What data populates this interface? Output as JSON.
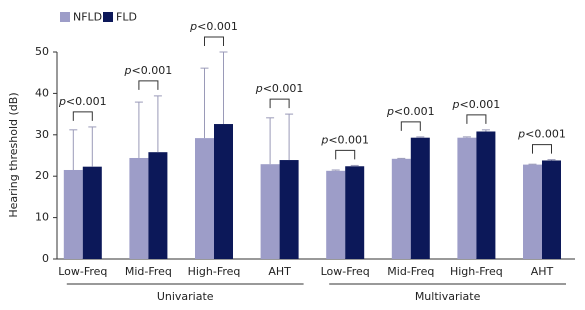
{
  "chart_data": {
    "type": "bar",
    "y_label": "Hearing threshold (dB)",
    "groups": [
      {
        "name": "Univariate",
        "categories": [
          "Low-Freq",
          "Mid-Freq",
          "High-Freq",
          "AHT"
        ]
      },
      {
        "name": "Multivariate",
        "categories": [
          "Low-Freq",
          "Mid-Freq",
          "High-Freq",
          "AHT"
        ]
      }
    ],
    "series": [
      {
        "name": "NFLD",
        "color": "#9d9dc8",
        "values": [
          21.5,
          24.4,
          29.2,
          22.9,
          21.3,
          24.2,
          29.3,
          22.8
        ],
        "errors": [
          9.7,
          13.5,
          16.9,
          11.2,
          0.2,
          0.1,
          0.2,
          0.1
        ]
      },
      {
        "name": "FLD",
        "color": "#0c1859",
        "values": [
          22.3,
          25.8,
          32.6,
          23.9,
          22.4,
          29.3,
          30.8,
          23.8
        ],
        "errors": [
          9.6,
          13.6,
          17.4,
          11.1,
          0.2,
          0.2,
          0.4,
          0.2
        ]
      }
    ],
    "annotations": [
      "p<0.001",
      "p<0.001",
      "p<0.001",
      "p<0.001",
      "p<0.001",
      "p<0.001",
      "p<0.001",
      "p<0.001"
    ],
    "ylim": [
      0,
      50
    ],
    "yticks": [
      0,
      10,
      20,
      30,
      40,
      50
    ]
  }
}
